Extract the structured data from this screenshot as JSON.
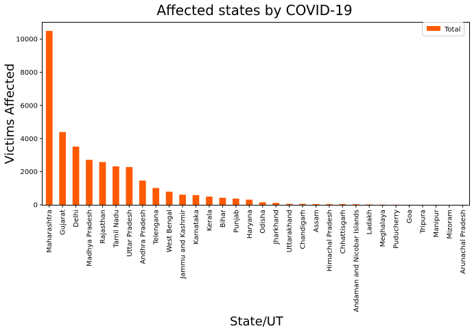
{
  "chart_data": {
    "type": "bar",
    "title": "Affected states by COVID-19",
    "xlabel": "State/UT",
    "ylabel": "Victims Affected",
    "categories": [
      "Maharashtra",
      "Gujarat",
      "Delhi",
      "Madhya Pradesh",
      "Rajasthan",
      "Tamil Nadu",
      "Uttar Pradesh",
      "Andhra Pradesh",
      "Telengana",
      "West Bengal",
      "Jammu and Kashmir",
      "Karnataka",
      "Kerala",
      "Bihar",
      "Punjab",
      "Haryana",
      "Odisha",
      "Jharkhand",
      "Uttarakhand",
      "Chandigarh",
      "Assam",
      "Himachal Pradesh",
      "Chhattisgarh",
      "Andaman and Nicobar Islands",
      "Ladakh",
      "Meghalaya",
      "Puducherry",
      "Goa",
      "Tripura",
      "Manipur",
      "Mizoram",
      "Arunachal Pradesh"
    ],
    "series": [
      {
        "name": "Total",
        "color": "#ff5a00",
        "values": [
          10498,
          4395,
          3515,
          2715,
          2584,
          2323,
          2281,
          1463,
          1016,
          795,
          614,
          589,
          497,
          426,
          375,
          313,
          154,
          115,
          57,
          56,
          43,
          40,
          43,
          33,
          22,
          12,
          8,
          7,
          2,
          2,
          1,
          1
        ]
      }
    ],
    "ylim": [
      0,
      11000
    ],
    "yticks": [
      0,
      2000,
      4000,
      6000,
      8000,
      10000
    ],
    "legend": "top-right",
    "grid": false
  }
}
